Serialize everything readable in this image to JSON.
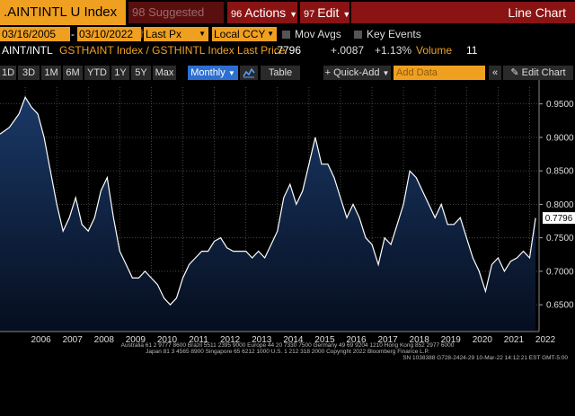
{
  "header": {
    "ticker": ".AINTINTL U Index",
    "suggested": {
      "num": "98",
      "label": "Suggested Charts"
    },
    "actions": {
      "num": "96",
      "label": "Actions"
    },
    "edit": {
      "num": "97",
      "label": "Edit"
    },
    "chart_title": "Line Chart"
  },
  "controls": {
    "start_date": "03/16/2005",
    "end_date": "03/10/2022",
    "field": "Last Px",
    "currency": "Local CCY",
    "mov_avgs": "Mov Avgs",
    "key_events": "Key Events",
    "date_sep": "-"
  },
  "legend_row": {
    "name": "AINT/INTL",
    "desc": "GSTHAINT Index / GSTHINTL Index Last Price",
    "last": ".7796",
    "change": "+.0087",
    "pct": "+1.13%",
    "volume_label": "Volume",
    "volume": "11"
  },
  "toolbar": {
    "ranges": [
      "1D",
      "3D",
      "1M",
      "6M",
      "YTD",
      "1Y",
      "5Y",
      "Max"
    ],
    "period": "Monthly",
    "table": "Table",
    "quick_add": "Quick-Add",
    "add_data_placeholder": "Add Data",
    "edit_chart": "Edit Chart"
  },
  "colors": {
    "accent": "#f0a020",
    "red": "#8a1414",
    "line": "#ffffff",
    "fill": "#0e2446"
  },
  "footer": {
    "line1": "Australia 61 2 9777 8600 Brazil 5511 2395 9000 Europe 44 20 7330 7500 Germany 49 69 9204 1210 Hong Kong 852 2977 6000",
    "line2": "Japan 81 3 4565 8900   Singapore 65 6212 1000   U.S. 1 212 318 2000   Copyright 2022 Bloomberg Finance L.P.",
    "line3": "SN 1038388 G728-2424-29 10-Mar-22 14:12:21 EST  GMT-5:00"
  },
  "chart_data": {
    "type": "area",
    "title": "",
    "xlabel": "",
    "ylabel": "",
    "ylim": [
      0.61,
      0.975
    ],
    "y_ticks": [
      0.65,
      0.7,
      0.75,
      0.8,
      0.85,
      0.9,
      0.95
    ],
    "y_tick_labels": [
      "0.6500",
      "0.7000",
      "0.7500",
      "0.8000",
      "0.8500",
      "0.9000",
      "0.9500"
    ],
    "x_tick_labels": [
      "2006",
      "2007",
      "2008",
      "2009",
      "2010",
      "2011",
      "2012",
      "2013",
      "2014",
      "2015",
      "2016",
      "2017",
      "2018",
      "2019",
      "2020",
      "2021",
      "2022"
    ],
    "last_value_label": "0.7796",
    "grid": true,
    "x": [
      2005.2,
      2005.5,
      2005.8,
      2006.0,
      2006.2,
      2006.4,
      2006.6,
      2006.8,
      2007.0,
      2007.2,
      2007.4,
      2007.6,
      2007.8,
      2008.0,
      2008.2,
      2008.4,
      2008.6,
      2008.8,
      2009.0,
      2009.2,
      2009.4,
      2009.6,
      2009.8,
      2010.0,
      2010.2,
      2010.4,
      2010.6,
      2010.8,
      2011.0,
      2011.2,
      2011.4,
      2011.6,
      2011.8,
      2012.0,
      2012.2,
      2012.4,
      2012.6,
      2012.8,
      2013.0,
      2013.2,
      2013.4,
      2013.6,
      2013.8,
      2014.0,
      2014.2,
      2014.4,
      2014.6,
      2014.8,
      2015.0,
      2015.2,
      2015.4,
      2015.6,
      2015.8,
      2016.0,
      2016.2,
      2016.4,
      2016.6,
      2016.8,
      2017.0,
      2017.2,
      2017.4,
      2017.6,
      2017.8,
      2018.0,
      2018.2,
      2018.4,
      2018.6,
      2018.8,
      2019.0,
      2019.2,
      2019.4,
      2019.6,
      2019.8,
      2020.0,
      2020.2,
      2020.4,
      2020.6,
      2020.8,
      2021.0,
      2021.2,
      2021.4,
      2021.6,
      2021.8,
      2022.0,
      2022.19
    ],
    "values": [
      0.905,
      0.915,
      0.935,
      0.96,
      0.945,
      0.935,
      0.9,
      0.85,
      0.8,
      0.76,
      0.78,
      0.81,
      0.77,
      0.76,
      0.78,
      0.82,
      0.84,
      0.78,
      0.73,
      0.71,
      0.69,
      0.69,
      0.7,
      0.69,
      0.68,
      0.66,
      0.65,
      0.66,
      0.69,
      0.71,
      0.72,
      0.73,
      0.73,
      0.745,
      0.75,
      0.735,
      0.73,
      0.73,
      0.73,
      0.72,
      0.73,
      0.72,
      0.74,
      0.76,
      0.81,
      0.83,
      0.8,
      0.82,
      0.86,
      0.9,
      0.86,
      0.86,
      0.84,
      0.81,
      0.78,
      0.8,
      0.78,
      0.75,
      0.74,
      0.71,
      0.75,
      0.74,
      0.77,
      0.8,
      0.85,
      0.84,
      0.82,
      0.8,
      0.78,
      0.8,
      0.77,
      0.77,
      0.78,
      0.75,
      0.72,
      0.7,
      0.67,
      0.71,
      0.72,
      0.7,
      0.715,
      0.72,
      0.73,
      0.72,
      0.7796
    ]
  }
}
